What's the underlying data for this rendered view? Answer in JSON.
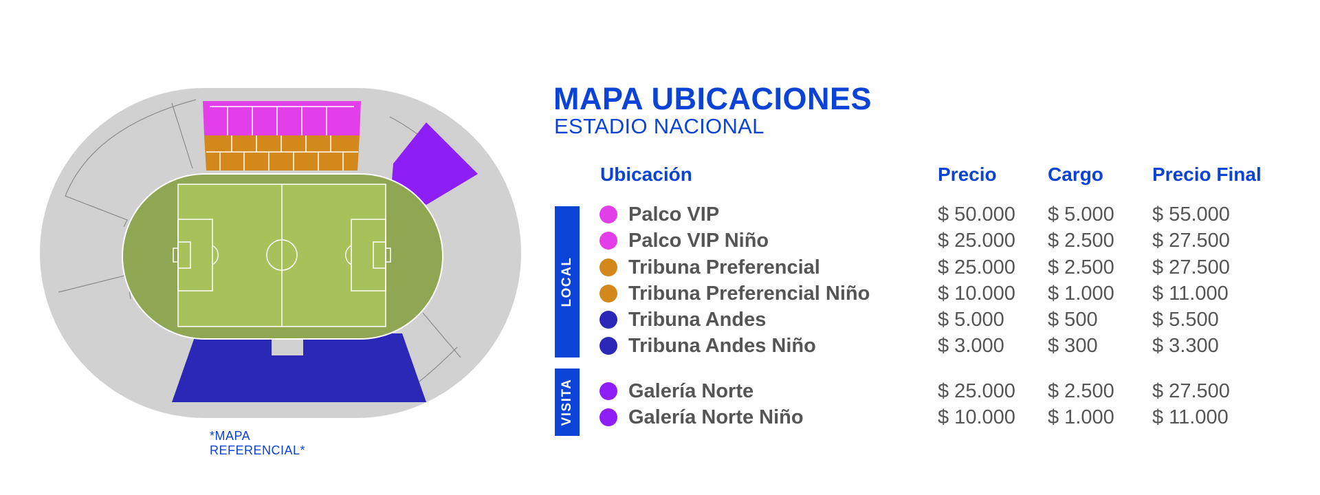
{
  "title": "MAPA UBICACIONES",
  "subtitle": "ESTADIO NACIONAL",
  "map_note": "*MAPA REFERENCIAL*",
  "columns": {
    "ubicacion": "Ubicación",
    "precio": "Precio",
    "cargo": "Cargo",
    "precio_final": "Precio Final"
  },
  "groups": {
    "local": "LOCAL",
    "visita": "VISITA"
  },
  "colors": {
    "accent": "#0b43d6",
    "palco": "#e23fe8",
    "tribuna_preferencial": "#d2881a",
    "tribuna_andes": "#2b28b8",
    "galeria_norte": "#8d1ef5",
    "field": "#8fa653",
    "pitch": "#a7c25a",
    "stand_gray": "#d1d1d1"
  },
  "rows": [
    {
      "name": "Palco VIP",
      "precio": "$ 50.000",
      "cargo": "$ 5.000",
      "final": "$ 55.000",
      "color": "#e23fe8"
    },
    {
      "name": "Palco VIP Niño",
      "precio": "$ 25.000",
      "cargo": "$ 2.500",
      "final": "$ 27.500",
      "color": "#e23fe8"
    },
    {
      "name": "Tribuna Preferencial",
      "precio": "$ 25.000",
      "cargo": "$ 2.500",
      "final": "$ 27.500",
      "color": "#d2881a"
    },
    {
      "name": "Tribuna Preferencial Niño",
      "precio": "$ 10.000",
      "cargo": "$ 1.000",
      "final": "$ 11.000",
      "color": "#d2881a"
    },
    {
      "name": "Tribuna Andes",
      "precio": "$ 5.000",
      "cargo": "$ 500",
      "final": "$ 5.500",
      "color": "#2b28b8"
    },
    {
      "name": "Tribuna Andes Niño",
      "precio": "$ 3.000",
      "cargo": "$ 300",
      "final": "$ 3.300",
      "color": "#2b28b8"
    },
    {
      "name": "Galería Norte",
      "precio": "$ 25.000",
      "cargo": "$ 2.500",
      "final": "$ 27.500",
      "color": "#8d1ef5"
    },
    {
      "name": "Galería Norte Niño",
      "precio": "$ 10.000",
      "cargo": "$ 1.000",
      "final": "$ 11.000",
      "color": "#8d1ef5"
    }
  ]
}
